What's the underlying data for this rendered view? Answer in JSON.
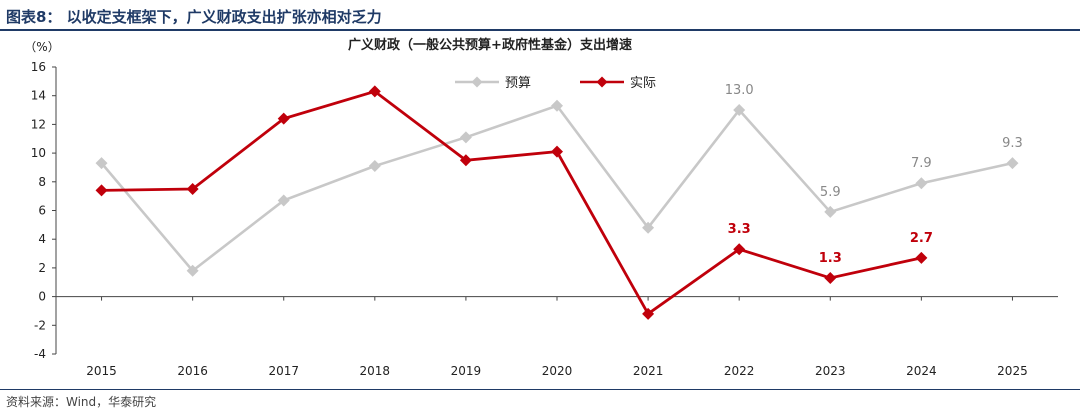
{
  "header": {
    "figure_title": "图表8： 以收定支框架下，广义财政支出扩张亦相对乏力"
  },
  "footer": {
    "source": "资料来源：Wind，华泰研究"
  },
  "chart_data": {
    "type": "line",
    "title": "广义财政（一般公共预算+政府性基金）支出增速",
    "ylabel": "（%）",
    "xlabel": "",
    "categories": [
      "2015",
      "2016",
      "2017",
      "2018",
      "2019",
      "2020",
      "2021",
      "2022",
      "2023",
      "2024",
      "2025"
    ],
    "ylim": [
      -4,
      16
    ],
    "yticks": [
      -4,
      -2,
      0,
      2,
      4,
      6,
      8,
      10,
      12,
      14,
      16
    ],
    "grid": false,
    "legend_position": "top-center",
    "series": [
      {
        "name": "预算",
        "color": "#c8c8c8",
        "marker": "diamond",
        "values": [
          9.3,
          1.8,
          6.7,
          9.1,
          11.1,
          13.3,
          4.8,
          13.0,
          5.9,
          7.9,
          9.3
        ],
        "labels": [
          null,
          null,
          null,
          null,
          null,
          null,
          null,
          "13.0",
          "5.9",
          "7.9",
          "9.3"
        ],
        "label_color": "#888888"
      },
      {
        "name": "实际",
        "color": "#c0000b",
        "marker": "diamond",
        "values": [
          7.4,
          7.5,
          12.4,
          14.3,
          9.5,
          10.1,
          -1.2,
          3.3,
          1.3,
          2.7,
          null
        ],
        "labels": [
          null,
          null,
          null,
          null,
          null,
          null,
          null,
          "3.3",
          "1.3",
          "2.7",
          null
        ],
        "label_color": "#c0000b"
      }
    ]
  }
}
